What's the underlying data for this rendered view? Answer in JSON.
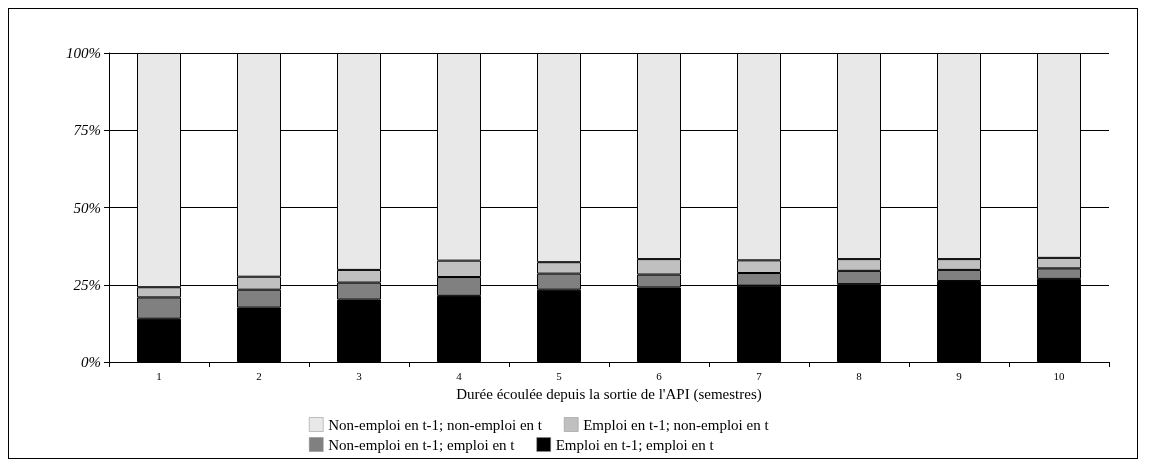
{
  "chart_data": {
    "type": "bar",
    "stacked": true,
    "xlabel": "Durée écoulée depuis la sortie de l'API (semestres)",
    "categories": [
      "1",
      "2",
      "3",
      "4",
      "5",
      "6",
      "7",
      "8",
      "9",
      "10"
    ],
    "series": [
      {
        "name": "Emploi en t-1; emploi en t",
        "color": "#000000",
        "values": [
          14.0,
          17.6,
          20.2,
          21.4,
          23.4,
          24.1,
          24.7,
          25.2,
          26.2,
          26.9
        ]
      },
      {
        "name": "Non-emploi en t-1; emploi en t",
        "color": "#808080",
        "values": [
          6.9,
          5.8,
          5.5,
          6.1,
          5.2,
          4.2,
          4.1,
          4.3,
          3.6,
          3.4
        ]
      },
      {
        "name": "Emploi en t-1; non-emploi en t",
        "color": "#c0c0c0",
        "values": [
          3.3,
          4.2,
          4.1,
          5.3,
          3.7,
          5.0,
          4.1,
          3.8,
          3.5,
          3.4
        ]
      },
      {
        "name": "Non-emploi en t-1; non-emploi en t",
        "color": "#e8e8e8",
        "values": [
          75.8,
          72.4,
          70.2,
          67.2,
          67.7,
          66.7,
          67.1,
          66.7,
          66.7,
          66.3
        ]
      }
    ],
    "ylim": [
      0,
      100
    ],
    "yticks": [
      {
        "value": 0,
        "label": "0%"
      },
      {
        "value": 25,
        "label": "25%"
      },
      {
        "value": 50,
        "label": "50%"
      },
      {
        "value": 75,
        "label": "75%"
      },
      {
        "value": 100,
        "label": "100%"
      }
    ],
    "grid": "y",
    "legend": "bottom"
  }
}
